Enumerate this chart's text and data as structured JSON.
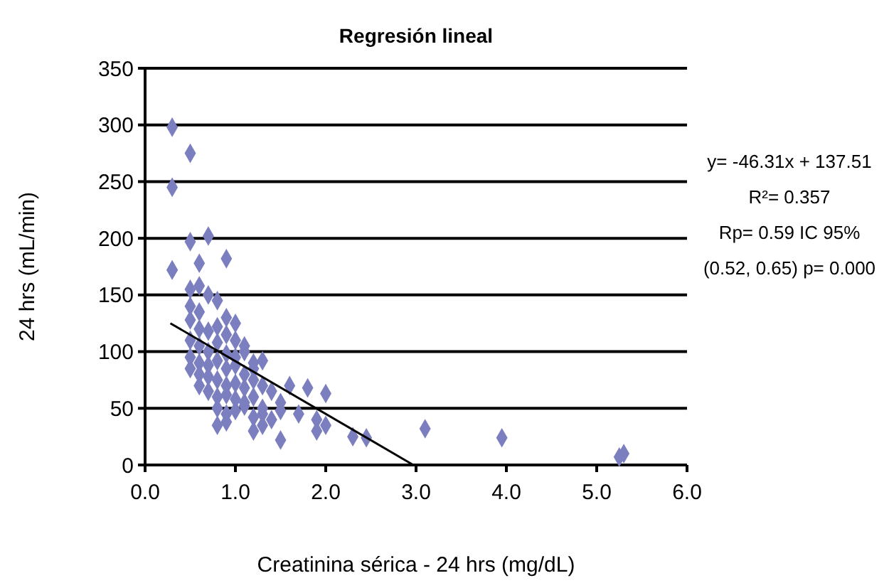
{
  "chart_data": {
    "type": "scatter",
    "title": "Regresión lineal",
    "xlabel": "Creatinina sérica - 24 hrs (mg/dL)",
    "ylabel": "24 hrs (mL/min)",
    "xlim": [
      0,
      6
    ],
    "xticks": [
      {
        "value": 0,
        "label": "0.0"
      },
      {
        "value": 1,
        "label": "1.0"
      },
      {
        "value": 2,
        "label": "2.0"
      },
      {
        "value": 3,
        "label": "3.0"
      },
      {
        "value": 4,
        "label": "4.0"
      },
      {
        "value": 5,
        "label": "5.0"
      },
      {
        "value": 6,
        "label": "6.0"
      }
    ],
    "ylim": [
      0,
      350
    ],
    "yticks": [
      0,
      50,
      100,
      150,
      200,
      250,
      300,
      350
    ],
    "grid": "y",
    "annotations": [
      "y= -46.31x + 137.51",
      "R²= 0.357",
      "Rp= 0.59 IC 95%",
      "(0.52, 0.65) p= 0.000"
    ],
    "series": [
      {
        "marker": "diamond",
        "color": "#7b7fbf",
        "x": [
          0.3,
          0.5,
          0.3,
          0.3,
          0.5,
          0.7,
          0.3,
          0.6,
          0.9,
          0.5,
          0.6,
          0.7,
          0.8,
          0.5,
          0.6,
          0.9,
          1.0,
          0.5,
          0.6,
          0.7,
          0.8,
          0.9,
          1.0,
          1.1,
          0.5,
          0.6,
          0.7,
          0.8,
          0.9,
          1.0,
          1.1,
          1.2,
          0.5,
          0.6,
          0.7,
          0.8,
          0.9,
          1.0,
          1.1,
          1.2,
          1.3,
          0.5,
          0.6,
          0.7,
          0.8,
          0.9,
          1.0,
          1.1,
          1.2,
          1.3,
          1.4,
          0.6,
          0.7,
          0.8,
          0.9,
          1.0,
          1.1,
          1.2,
          1.3,
          1.5,
          0.8,
          0.9,
          1.0,
          1.1,
          1.2,
          1.3,
          1.4,
          1.5,
          1.6,
          1.8,
          2.0,
          1.7,
          1.9,
          2.0,
          1.3,
          1.5,
          0.8,
          0.9,
          1.2,
          1.9,
          2.3,
          2.45,
          3.1,
          3.95,
          5.3,
          5.25
        ],
        "values": [
          298,
          275,
          245,
          172,
          197,
          202,
          172,
          178,
          182,
          155,
          158,
          150,
          145,
          140,
          135,
          130,
          125,
          128,
          120,
          118,
          122,
          115,
          110,
          105,
          110,
          105,
          100,
          108,
          98,
          95,
          100,
          90,
          95,
          90,
          88,
          92,
          85,
          88,
          80,
          85,
          92,
          85,
          80,
          78,
          75,
          70,
          72,
          68,
          75,
          70,
          65,
          70,
          65,
          60,
          62,
          58,
          55,
          60,
          50,
          55,
          50,
          45,
          48,
          52,
          42,
          45,
          40,
          48,
          70,
          68,
          63,
          45,
          40,
          35,
          35,
          22,
          35,
          38,
          30,
          30,
          25,
          24,
          32,
          24,
          10,
          7
        ]
      },
      {
        "type": "line",
        "marker": "none",
        "color": "#000000",
        "x": [
          0.28,
          2.97
        ],
        "values": [
          125,
          0
        ]
      }
    ]
  }
}
